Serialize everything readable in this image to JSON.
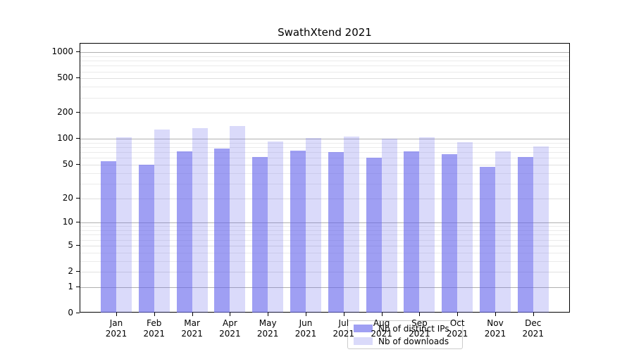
{
  "title": "SwathXtend 2021",
  "colors": {
    "series_dark": "rgba(100,100,235,0.62)",
    "series_light": "rgba(100,100,235,0.24)",
    "grid_major": "#b0b0b0",
    "grid_minor": "#ebebeb",
    "spine": "#000000"
  },
  "legend": {
    "items": [
      {
        "label": "Nb of distinct IPs",
        "color": "rgba(100,100,235,0.62)"
      },
      {
        "label": "Nb of downloads",
        "color": "rgba(100,100,235,0.24)"
      }
    ]
  },
  "chart_data": {
    "type": "bar",
    "title": "SwathXtend 2021",
    "categories": [
      "Jan 2021",
      "Feb 2021",
      "Mar 2021",
      "Apr 2021",
      "May 2021",
      "Jun 2021",
      "Jul 2021",
      "Aug 2021",
      "Sep 2021",
      "Oct 2021",
      "Nov 2021",
      "Dec 2021"
    ],
    "series": [
      {
        "name": "Nb of distinct IPs",
        "values": [
          55,
          50,
          72,
          77,
          62,
          73,
          70,
          60,
          71,
          67,
          47,
          61
        ],
        "color": "rgba(100,100,235,0.62)"
      },
      {
        "name": "Nb of downloads",
        "values": [
          104,
          129,
          134,
          140,
          93,
          103,
          106,
          101,
          104,
          92,
          72,
          82
        ],
        "color": "rgba(100,100,235,0.24)"
      }
    ],
    "xlabel": "",
    "ylabel": "",
    "yscale": "log10(value+1)",
    "yticks": [
      0,
      1,
      2,
      5,
      10,
      20,
      50,
      100,
      200,
      500,
      1000
    ],
    "major_gridlines": [
      1,
      10,
      100,
      1000
    ],
    "sub_gridlines": [
      2,
      5,
      20,
      50,
      200,
      500
    ],
    "minor_gridlines": [
      3,
      4,
      6,
      7,
      8,
      9,
      30,
      40,
      60,
      70,
      80,
      90,
      300,
      400,
      600,
      700,
      800,
      900
    ],
    "ylim": [
      0,
      1200
    ],
    "grid": "both",
    "legend_position": "lower-center"
  }
}
